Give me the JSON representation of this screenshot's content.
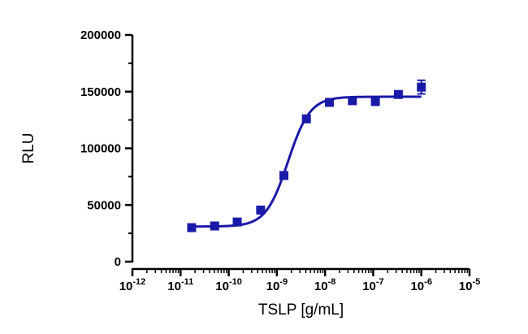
{
  "chart_data": {
    "type": "scatter",
    "xlabel": "TSLP [g/mL]",
    "ylabel": "RLU",
    "x_scale": "log",
    "xlim": [
      1e-12,
      1e-05
    ],
    "ylim": [
      0,
      200000
    ],
    "x_ticks": [
      1e-12,
      1e-11,
      1e-10,
      1e-09,
      1e-08,
      1e-07,
      1e-06,
      1e-05
    ],
    "x_tick_labels": [
      {
        "base": "10",
        "exp": "-12"
      },
      {
        "base": "10",
        "exp": "-11"
      },
      {
        "base": "10",
        "exp": "-10"
      },
      {
        "base": "10",
        "exp": "-9"
      },
      {
        "base": "10",
        "exp": "-8"
      },
      {
        "base": "10",
        "exp": "-7"
      },
      {
        "base": "10",
        "exp": "-6"
      },
      {
        "base": "10",
        "exp": "-5"
      }
    ],
    "y_ticks": [
      0,
      50000,
      100000,
      150000,
      200000
    ],
    "y_tick_labels": [
      "0",
      "50000",
      "100000",
      "150000",
      "200000"
    ],
    "grid": false,
    "series": [
      {
        "color": "#1a1aa8",
        "marker": "square",
        "points": [
          {
            "x": 1.7e-11,
            "y": 30000,
            "err": 2000
          },
          {
            "x": 5.1e-11,
            "y": 31500,
            "err": 2000
          },
          {
            "x": 1.5e-10,
            "y": 35000,
            "err": 2000
          },
          {
            "x": 4.6e-10,
            "y": 45500,
            "err": 2500
          },
          {
            "x": 1.4e-09,
            "y": 76000,
            "err": 2500
          },
          {
            "x": 4.1e-09,
            "y": 126000,
            "err": 3000
          },
          {
            "x": 1.23e-08,
            "y": 140500,
            "err": 2500
          },
          {
            "x": 3.7e-08,
            "y": 142000,
            "err": 2500
          },
          {
            "x": 1.11e-07,
            "y": 141500,
            "err": 3500
          },
          {
            "x": 3.33e-07,
            "y": 147500,
            "err": 2500
          },
          {
            "x": 1e-06,
            "y": 154000,
            "err": 6000
          }
        ],
        "fit": {
          "model": "four-parameter logistic",
          "bottom": 31000,
          "top": 145500,
          "ec50": 1.7e-09,
          "hill": 1.9,
          "x_range": [
            1.7e-11,
            1e-06
          ]
        }
      }
    ]
  }
}
